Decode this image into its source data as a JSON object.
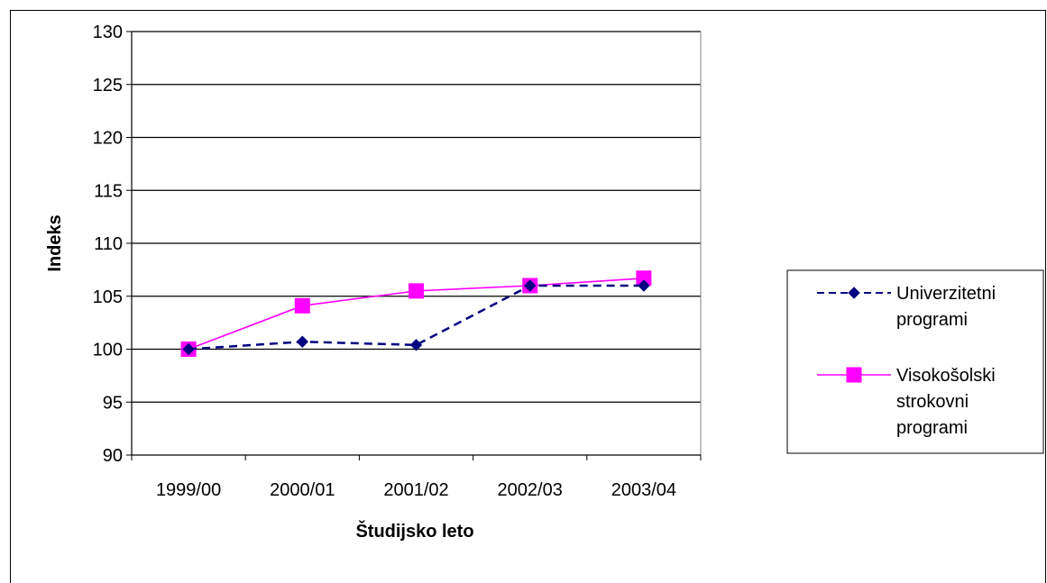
{
  "chart_data": {
    "type": "line",
    "categories": [
      "1999/00",
      "2000/01",
      "2001/02",
      "2002/03",
      "2003/04"
    ],
    "series": [
      {
        "name": "Univerzitetni programi",
        "name_lines": [
          "Univerzitetni",
          "programi"
        ],
        "values": [
          100,
          100.7,
          100.4,
          106.0,
          106.0
        ],
        "color": "#000080",
        "line_style": "dashed",
        "marker": "diamond"
      },
      {
        "name": "Visokošolski strokovni programi",
        "name_lines": [
          "Visokošolski",
          "strokovni",
          "programi"
        ],
        "values": [
          100,
          104.1,
          105.5,
          106.0,
          106.7
        ],
        "color": "#ff00ff",
        "line_style": "solid",
        "marker": "square"
      }
    ],
    "xlabel": "Študijsko leto",
    "ylabel": "Indeks",
    "ylim": [
      90,
      130
    ],
    "yticks": [
      90,
      95,
      100,
      105,
      110,
      115,
      120,
      125,
      130
    ],
    "grid": true,
    "legend_position": "right"
  }
}
